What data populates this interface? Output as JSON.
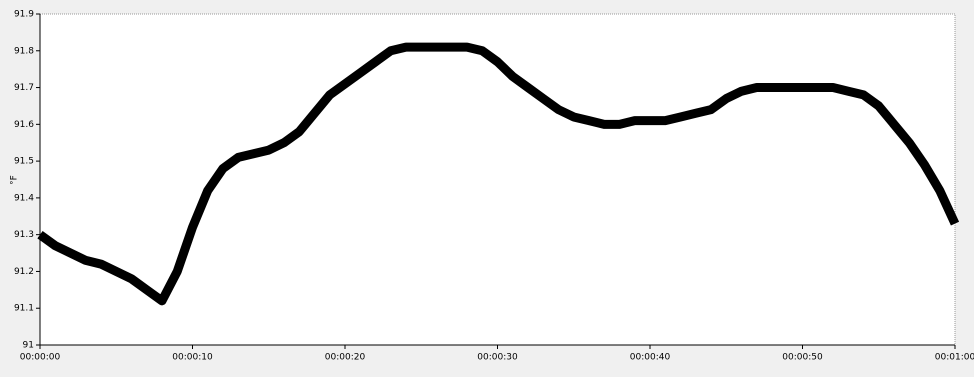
{
  "chart_data": {
    "type": "line",
    "y_label": "°F",
    "x": [
      0,
      1,
      2,
      3,
      4,
      5,
      6,
      7,
      8,
      9,
      10,
      11,
      12,
      13,
      14,
      15,
      16,
      17,
      18,
      19,
      20,
      21,
      22,
      23,
      24,
      25,
      26,
      27,
      28,
      29,
      30,
      31,
      32,
      33,
      34,
      35,
      36,
      37,
      38,
      39,
      40,
      41,
      42,
      43,
      44,
      45,
      46,
      47,
      48,
      49,
      50,
      51,
      52,
      53,
      54,
      55,
      56,
      57,
      58,
      59,
      60
    ],
    "series": [
      {
        "name": "°F",
        "color": "#000000",
        "values": [
          91.3,
          91.27,
          91.25,
          91.23,
          91.22,
          91.2,
          91.18,
          91.15,
          91.12,
          91.2,
          91.32,
          91.42,
          91.48,
          91.51,
          91.52,
          91.53,
          91.55,
          91.58,
          91.63,
          91.68,
          91.71,
          91.74,
          91.77,
          91.8,
          91.81,
          91.81,
          91.81,
          91.81,
          91.81,
          91.8,
          91.77,
          91.73,
          91.7,
          91.67,
          91.64,
          91.62,
          91.61,
          91.6,
          91.6,
          91.61,
          91.61,
          91.61,
          91.62,
          91.63,
          91.64,
          91.67,
          91.69,
          91.7,
          91.7,
          91.7,
          91.7,
          91.7,
          91.7,
          91.69,
          91.68,
          91.65,
          91.6,
          91.55,
          91.49,
          91.42,
          91.33
        ]
      }
    ],
    "xlim": [
      0,
      60
    ],
    "xticks": [
      {
        "value": 0,
        "label": "00:00:00"
      },
      {
        "value": 10,
        "label": "00:00:10"
      },
      {
        "value": 20,
        "label": "00:00:20"
      },
      {
        "value": 30,
        "label": "00:00:30"
      },
      {
        "value": 40,
        "label": "00:00:40"
      },
      {
        "value": 50,
        "label": "00:00:50"
      },
      {
        "value": 60,
        "label": "00:01:00"
      }
    ],
    "ylim": [
      91,
      91.9
    ],
    "yticks": [
      91,
      91.1,
      91.2,
      91.3,
      91.4,
      91.5,
      91.6,
      91.7,
      91.8,
      91.9
    ],
    "grid": false
  }
}
